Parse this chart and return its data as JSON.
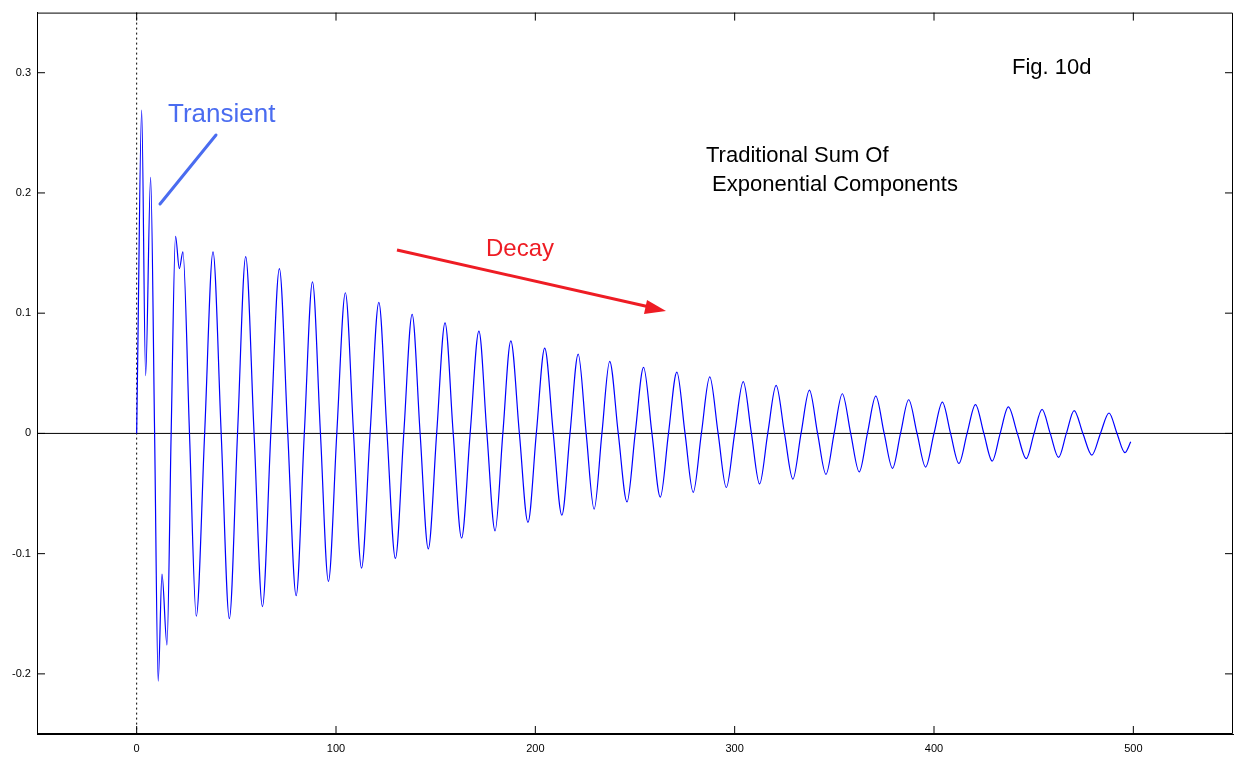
{
  "chart_data": {
    "type": "line",
    "x": [
      0,
      0.5,
      2.5,
      4.5,
      7,
      9,
      10.8,
      12.7,
      15.2,
      17.3,
      19.5,
      21.4,
      23.2,
      26.5,
      29.9,
      34.1,
      38.3,
      42.4,
      46.5,
      50.6,
      54.7,
      58.9,
      63.1,
      67.3,
      71.6,
      75.8,
      80,
      84.1,
      88.2,
      92.2,
      96.2,
      100.4,
      104.7,
      108.8,
      112.8,
      117.1,
      121.5,
      125.6,
      129.8,
      134,
      138.2,
      142.2,
      146.3,
      150.5,
      154.7,
      158.8,
      163,
      167.3,
      171.7,
      175.7,
      179.8,
      183.7,
      187.7,
      192,
      196.3,
      200.5,
      204.7,
      209,
      213.3,
      217.4,
      221.5,
      225.5,
      229.5,
      233.4,
      237.3,
      241.6,
      246,
      250.1,
      254.3,
      258.5,
      262.7,
      266.8,
      271,
      275.1,
      279.2,
      283.3,
      287.5,
      291.7,
      295.8,
      300,
      304.3,
      308.4,
      312.5,
      316.6,
      320.8,
      325,
      329.2,
      333.3,
      337.5,
      341.6,
      345.8,
      349.9,
      354,
      358.2,
      362.5,
      366.6,
      370.8,
      375,
      379.2,
      383.2,
      387.3,
      391.5,
      395.8,
      400,
      404.2,
      408.3,
      412.5,
      416.6,
      420.8,
      425,
      429.2,
      433.2,
      437.3,
      441.8,
      446.3,
      450.2,
      454.2,
      458.3,
      462.5,
      466.4,
      470.3,
      474.7,
      479.2,
      483.5,
      487.8,
      491.8,
      495.8,
      498.7
    ],
    "series": [
      {
        "color": "#0000ff",
        "values": [
          0,
          0.06,
          0.269,
          0.048,
          0.213,
          0,
          -0.206,
          -0.117,
          -0.176,
          0,
          0.164,
          0.137,
          0.151,
          0,
          -0.152,
          0,
          0.151,
          0,
          -0.154,
          0,
          0.147,
          0,
          -0.144,
          0,
          0.137,
          0,
          -0.135,
          0,
          0.126,
          0,
          -0.123,
          0,
          0.117,
          0,
          -0.112,
          0,
          0.109,
          0,
          -0.104,
          0,
          0.099,
          0,
          -0.096,
          0,
          0.092,
          0,
          -0.087,
          0,
          0.085,
          0,
          -0.081,
          0,
          0.077,
          0,
          -0.074,
          0,
          0.071,
          0,
          -0.068,
          0,
          0.066,
          0,
          -0.063,
          0,
          0.06,
          0,
          -0.057,
          0,
          0.055,
          0,
          -0.053,
          0,
          0.051,
          0,
          -0.049,
          0,
          0.047,
          0,
          -0.045,
          0,
          0.043,
          0,
          -0.042,
          0,
          0.04,
          0,
          -0.038,
          0,
          0.036,
          0,
          -0.034,
          0,
          0.033,
          0,
          -0.032,
          0,
          0.031,
          0,
          -0.029,
          0,
          0.028,
          0,
          -0.028,
          0,
          0.026,
          0,
          -0.025,
          0,
          0.024,
          0,
          -0.023,
          0,
          0.022,
          0,
          -0.021,
          0,
          0.02,
          0,
          -0.02,
          0,
          0.019,
          0,
          -0.018,
          0,
          0.017,
          0,
          -0.016,
          -0.007
        ]
      }
    ],
    "xlim": [
      -50,
      550
    ],
    "xticks": [
      0,
      100,
      200,
      300,
      400,
      500
    ],
    "ylim": [
      -0.25,
      0.35
    ],
    "yticks": [
      -0.2,
      -0.1,
      0,
      0.1,
      0.2,
      0.3
    ],
    "ref_lines": [
      {
        "axis": "y",
        "value": 0,
        "color": "#000000",
        "line_style": "solid"
      },
      {
        "axis": "x",
        "value": 0,
        "color": "#000000",
        "line_style": "dotted"
      }
    ],
    "legend": false,
    "marker": "none",
    "line_style": "solid",
    "annotations": [
      "Fig. 10d",
      "Traditional Sum Of\n Exponential Components",
      "Transient",
      "Decay"
    ]
  }
}
